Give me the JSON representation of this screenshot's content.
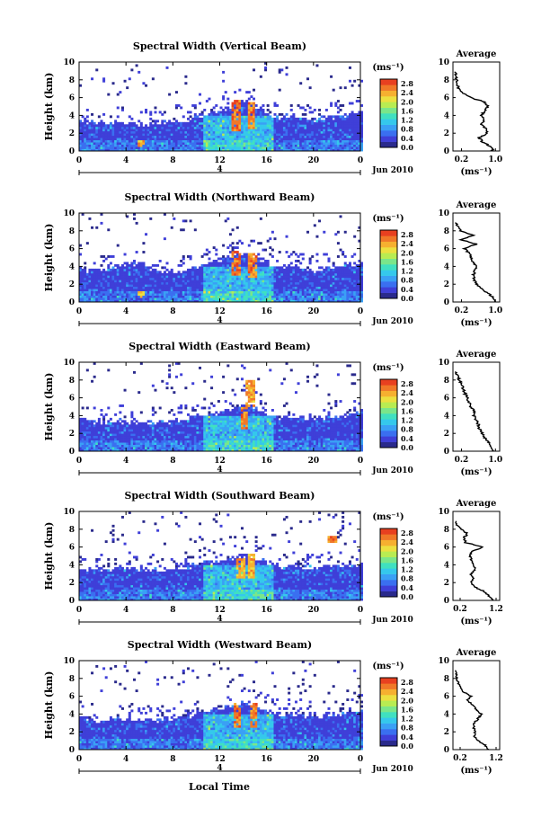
{
  "colors": {
    "colorbar": [
      "#2a2a8c",
      "#3f3fd8",
      "#3a6ff0",
      "#3aa0f5",
      "#35c8ec",
      "#40e0c0",
      "#7ae68a",
      "#b8ec52",
      "#ece040",
      "#f6b030",
      "#f07828",
      "#e84020"
    ],
    "line": "#000000"
  },
  "shared": {
    "xlabel": "Local Time",
    "date_label": "Jun 2010",
    "day_tick_label": "4",
    "ylabel": "Height (km)",
    "colorbar_unit": "(ms⁻¹)",
    "avg_title": "Average",
    "avg_xlabel": "(ms⁻¹)"
  },
  "chart_data": [
    {
      "type": "heatmap",
      "title": "Spectral Width (Vertical Beam)",
      "xlabel": "Local Time",
      "ylabel": "Height (km)",
      "x_ticks": [
        "0",
        "4",
        "8",
        "12",
        "16",
        "20",
        "0"
      ],
      "xlim": [
        0,
        24
      ],
      "y_ticks": [
        "0",
        "2",
        "4",
        "6",
        "8",
        "10"
      ],
      "ylim": [
        0,
        10
      ],
      "colorbar": {
        "ticks": [
          "0.0",
          "0.4",
          "0.8",
          "1.2",
          "1.6",
          "2.0",
          "2.4",
          "2.8"
        ],
        "range": [
          0,
          3.0
        ]
      },
      "echo_top_km": [
        3.3,
        3.1,
        3.0,
        3.2,
        3.0,
        2.9,
        3.0,
        3.1,
        3.2,
        3.4,
        3.7,
        4.1,
        4.6,
        5.0,
        5.5,
        4.9,
        4.2,
        3.6,
        3.9,
        3.6,
        3.4,
        3.7,
        3.8,
        3.9,
        4.2
      ],
      "cores": [
        {
          "t": 13.3,
          "h0": 2.2,
          "h1": 5.6,
          "v": 2.9
        },
        {
          "t": 14.6,
          "h0": 2.4,
          "h1": 5.3,
          "v": 2.8
        },
        {
          "t": 5.2,
          "h0": 0.3,
          "h1": 1.2,
          "v": 2.6
        }
      ],
      "average": {
        "xlim": [
          0,
          1.1
        ],
        "x_ticks": [
          "0.2",
          "1.0"
        ],
        "height_km": [
          0,
          0.5,
          1,
          1.5,
          2,
          2.5,
          3,
          3.5,
          4,
          4.5,
          5,
          5.5,
          6,
          6.5,
          7,
          7.5,
          8,
          8.5,
          9
        ],
        "value": [
          0.95,
          0.9,
          0.7,
          0.62,
          0.8,
          0.78,
          0.66,
          0.74,
          0.68,
          0.74,
          0.82,
          0.75,
          0.42,
          0.22,
          0.14,
          0.1,
          0.08,
          0.07,
          0.06
        ]
      }
    },
    {
      "type": "heatmap",
      "title": "Spectral Width (Northward Beam)",
      "xlabel": "Local Time",
      "ylabel": "Height (km)",
      "x_ticks": [
        "0",
        "4",
        "8",
        "12",
        "16",
        "20",
        "0"
      ],
      "xlim": [
        0,
        24
      ],
      "y_ticks": [
        "0",
        "2",
        "4",
        "6",
        "8",
        "10"
      ],
      "ylim": [
        0,
        10
      ],
      "colorbar": {
        "ticks": [
          "0.0",
          "0.4",
          "0.8",
          "1.2",
          "1.6",
          "2.0",
          "2.4",
          "2.8"
        ],
        "range": [
          0,
          3.0
        ]
      },
      "echo_top_km": [
        3.5,
        3.4,
        3.6,
        3.8,
        4.2,
        4.3,
        3.6,
        3.4,
        3.2,
        3.4,
        3.8,
        4.2,
        4.6,
        5.2,
        5.4,
        5.0,
        4.3,
        3.8,
        4.0,
        3.6,
        3.4,
        3.8,
        4.0,
        4.1,
        4.3
      ],
      "cores": [
        {
          "t": 13.3,
          "h0": 2.8,
          "h1": 5.5,
          "v": 2.9
        },
        {
          "t": 14.7,
          "h0": 2.6,
          "h1": 5.3,
          "v": 2.8
        },
        {
          "t": 5.2,
          "h0": 0.3,
          "h1": 1.1,
          "v": 2.6
        }
      ],
      "average": {
        "xlim": [
          0,
          1.1
        ],
        "x_ticks": [
          "0.2",
          "1.0"
        ],
        "height_km": [
          0,
          0.5,
          1,
          1.5,
          2,
          2.5,
          3,
          3.5,
          4,
          4.5,
          5,
          5.5,
          6,
          6.5,
          7,
          7.5,
          8,
          8.5,
          9
        ],
        "value": [
          1.0,
          0.95,
          0.82,
          0.66,
          0.55,
          0.5,
          0.48,
          0.52,
          0.55,
          0.48,
          0.42,
          0.38,
          0.28,
          0.55,
          0.2,
          0.48,
          0.18,
          0.1,
          0.05
        ]
      }
    },
    {
      "type": "heatmap",
      "title": "Spectral Width (Eastward Beam)",
      "xlabel": "Local Time",
      "ylabel": "Height (km)",
      "x_ticks": [
        "0",
        "4",
        "8",
        "12",
        "16",
        "20",
        "0"
      ],
      "xlim": [
        0,
        24
      ],
      "y_ticks": [
        "0",
        "2",
        "4",
        "6",
        "8",
        "10"
      ],
      "ylim": [
        0,
        10
      ],
      "colorbar": {
        "ticks": [
          "0.0",
          "0.4",
          "0.8",
          "1.2",
          "1.6",
          "2.0",
          "2.4",
          "2.8"
        ],
        "range": [
          0,
          3.0
        ]
      },
      "echo_top_km": [
        3.4,
        3.2,
        3.1,
        3.3,
        3.2,
        3.1,
        3.2,
        3.2,
        3.3,
        3.5,
        3.8,
        4.1,
        4.3,
        4.8,
        5.2,
        4.7,
        4.1,
        3.6,
        3.9,
        3.7,
        3.5,
        3.7,
        3.9,
        4.0,
        4.2
      ],
      "cores": [
        {
          "t": 14.0,
          "h0": 2.3,
          "h1": 4.8,
          "v": 2.8
        },
        {
          "t": 14.5,
          "h0": 4.8,
          "h1": 7.8,
          "v": 2.7
        }
      ],
      "average": {
        "xlim": [
          0,
          1.1
        ],
        "x_ticks": [
          "0.2",
          "1.0"
        ],
        "height_km": [
          0,
          0.5,
          1,
          1.5,
          2,
          2.5,
          3,
          3.5,
          4,
          4.5,
          5,
          5.5,
          6,
          6.5,
          7,
          7.5,
          8,
          8.5,
          9
        ],
        "value": [
          0.95,
          0.9,
          0.85,
          0.75,
          0.7,
          0.62,
          0.6,
          0.55,
          0.5,
          0.5,
          0.42,
          0.38,
          0.34,
          0.28,
          0.24,
          0.2,
          0.15,
          0.1,
          0.05
        ]
      }
    },
    {
      "type": "heatmap",
      "title": "Spectral Width (Southward Beam)",
      "xlabel": "Local Time",
      "ylabel": "Height (km)",
      "x_ticks": [
        "0",
        "4",
        "8",
        "12",
        "16",
        "20",
        "0"
      ],
      "xlim": [
        0,
        24
      ],
      "y_ticks": [
        "0",
        "2",
        "4",
        "6",
        "8",
        "10"
      ],
      "ylim": [
        0,
        10
      ],
      "colorbar": {
        "ticks": [
          "0.0",
          "0.4",
          "0.8",
          "1.2",
          "1.6",
          "2.0",
          "2.4",
          "2.8"
        ],
        "range": [
          0,
          3.0
        ]
      },
      "echo_top_km": [
        3.4,
        3.3,
        3.3,
        3.5,
        3.6,
        3.4,
        3.3,
        3.3,
        3.4,
        3.6,
        3.9,
        4.2,
        4.4,
        4.7,
        5.0,
        4.6,
        4.1,
        3.7,
        3.9,
        3.6,
        3.4,
        3.7,
        3.8,
        3.9,
        4.1
      ],
      "cores": [
        {
          "t": 13.7,
          "h0": 2.3,
          "h1": 4.5,
          "v": 2.7
        },
        {
          "t": 14.6,
          "h0": 2.5,
          "h1": 5.2,
          "v": 2.6
        },
        {
          "t": 21.5,
          "h0": 6.5,
          "h1": 7.0,
          "v": 2.9
        }
      ],
      "average": {
        "xlim": [
          0,
          1.3
        ],
        "x_ticks": [
          "0.2",
          "1.2"
        ],
        "height_km": [
          0,
          0.5,
          1,
          1.5,
          2,
          2.5,
          3,
          3.5,
          4,
          4.5,
          5,
          5.5,
          6,
          6.5,
          7,
          7.5,
          8,
          8.5,
          9
        ],
        "value": [
          1.1,
          1.0,
          0.88,
          0.6,
          0.5,
          0.55,
          0.5,
          0.62,
          0.58,
          0.52,
          0.48,
          0.5,
          0.85,
          0.35,
          0.3,
          0.4,
          0.22,
          0.12,
          0.08
        ]
      }
    },
    {
      "type": "heatmap",
      "title": "Spectral Width (Westward Beam)",
      "xlabel": "Local Time",
      "ylabel": "Height (km)",
      "x_ticks": [
        "0",
        "4",
        "8",
        "12",
        "16",
        "20",
        "0"
      ],
      "xlim": [
        0,
        24
      ],
      "y_ticks": [
        "0",
        "2",
        "4",
        "6",
        "8",
        "10"
      ],
      "ylim": [
        0,
        10
      ],
      "colorbar": {
        "ticks": [
          "0.0",
          "0.4",
          "0.8",
          "1.2",
          "1.6",
          "2.0",
          "2.4",
          "2.8"
        ],
        "range": [
          0,
          3.0
        ]
      },
      "echo_top_km": [
        3.5,
        3.3,
        3.2,
        3.4,
        3.3,
        3.2,
        3.2,
        3.3,
        3.4,
        3.6,
        3.9,
        4.2,
        4.5,
        4.9,
        5.4,
        4.8,
        4.2,
        3.7,
        4.0,
        3.7,
        3.5,
        3.8,
        3.9,
        4.0,
        4.3
      ],
      "cores": [
        {
          "t": 13.4,
          "h0": 2.5,
          "h1": 5.2,
          "v": 2.9
        },
        {
          "t": 14.8,
          "h0": 2.4,
          "h1": 5.0,
          "v": 2.8
        }
      ],
      "average": {
        "xlim": [
          0,
          1.3
        ],
        "x_ticks": [
          "0.2",
          "1.2"
        ],
        "height_km": [
          0,
          0.5,
          1,
          1.5,
          2,
          2.5,
          3,
          3.5,
          4,
          4.5,
          5,
          5.5,
          6,
          6.5,
          7,
          7.5,
          8,
          8.5,
          9
        ],
        "value": [
          1.0,
          0.9,
          0.7,
          0.6,
          0.62,
          0.58,
          0.6,
          0.7,
          0.8,
          0.65,
          0.55,
          0.4,
          0.5,
          0.3,
          0.2,
          0.15,
          0.1,
          0.08,
          0.05
        ]
      }
    }
  ]
}
